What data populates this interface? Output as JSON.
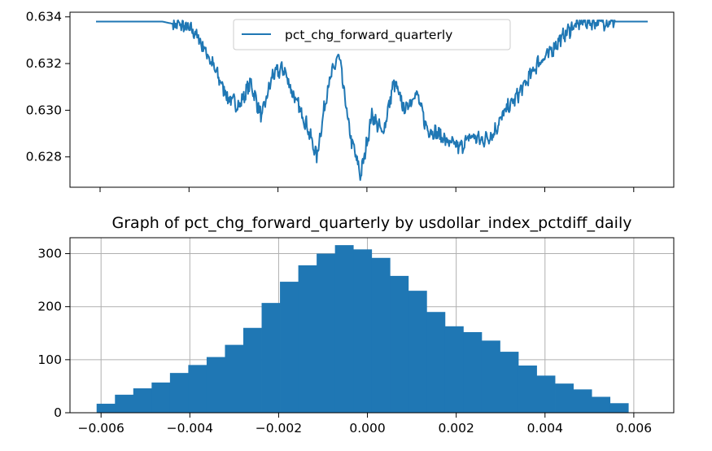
{
  "chart_data": [
    {
      "type": "line",
      "title": "",
      "xlabel": "",
      "ylabel": "",
      "ylim": [
        0.6267,
        0.6342
      ],
      "yticks": [
        0.628,
        0.63,
        0.632,
        0.634
      ],
      "ytick_labels": [
        "0.628",
        "0.630",
        "0.632",
        "0.634"
      ],
      "xticks_count": 7,
      "xtick_labels": [],
      "legend": {
        "placement": "upper-center",
        "entries": [
          "pct_chg_forward_quarterly"
        ]
      },
      "grid": false,
      "series": [
        {
          "name": "pct_chg_forward_quarterly",
          "color": "#1f77b4",
          "x": [
            0,
            0.08,
            0.12,
            0.14,
            0.16,
            0.18,
            0.2,
            0.22,
            0.24,
            0.26,
            0.28,
            0.3,
            0.32,
            0.34,
            0.36,
            0.38,
            0.4,
            0.42,
            0.44,
            0.46,
            0.48,
            0.5,
            0.52,
            0.54,
            0.56,
            0.58,
            0.6,
            0.62,
            0.64,
            0.66,
            0.68,
            0.7,
            0.72,
            0.74,
            0.76,
            0.78,
            0.8,
            0.82,
            0.84,
            0.86,
            0.88,
            0.9,
            0.92,
            0.94,
            0.96,
            1
          ],
          "y": [
            0.6338,
            0.6338,
            0.6338,
            0.6337,
            0.6336,
            0.6333,
            0.6325,
            0.6315,
            0.6305,
            0.6302,
            0.6312,
            0.6297,
            0.6315,
            0.6318,
            0.6305,
            0.6295,
            0.628,
            0.631,
            0.6324,
            0.629,
            0.6272,
            0.6298,
            0.629,
            0.6312,
            0.63,
            0.6308,
            0.6292,
            0.629,
            0.6286,
            0.6284,
            0.6289,
            0.6287,
            0.629,
            0.6299,
            0.6305,
            0.6312,
            0.632,
            0.6324,
            0.633,
            0.6335,
            0.6338,
            0.6338,
            0.6338,
            0.6338,
            0.6338,
            0.6338
          ]
        }
      ]
    },
    {
      "type": "bar",
      "title": "Graph of pct_chg_forward_quarterly by usdollar_index_pctdiff_daily",
      "xlabel": "",
      "ylabel": "",
      "xlim": [
        -0.0067,
        0.0069
      ],
      "ylim": [
        0,
        330
      ],
      "xticks": [
        -0.006,
        -0.004,
        -0.002,
        0.0,
        0.002,
        0.004,
        0.006
      ],
      "xtick_labels": [
        "−0.006",
        "−0.004",
        "−0.002",
        "0.000",
        "0.002",
        "0.004",
        "0.006"
      ],
      "yticks": [
        0,
        100,
        200,
        300
      ],
      "ytick_labels": [
        "0",
        "100",
        "200",
        "300"
      ],
      "grid": true,
      "bar_color": "#1f77b4",
      "bin_start": -0.0061,
      "bin_width": 0.000413,
      "values": [
        17,
        34,
        46,
        57,
        75,
        90,
        105,
        128,
        160,
        207,
        247,
        278,
        300,
        316,
        308,
        292,
        258,
        230,
        190,
        163,
        152,
        136,
        115,
        89,
        70,
        55,
        44,
        30,
        18
      ]
    }
  ]
}
